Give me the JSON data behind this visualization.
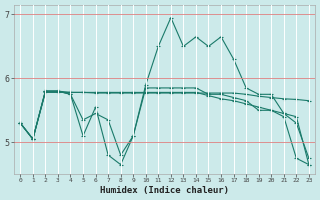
{
  "x": [
    0,
    1,
    2,
    3,
    4,
    5,
    6,
    7,
    8,
    9,
    10,
    11,
    12,
    13,
    14,
    15,
    16,
    17,
    18,
    19,
    20,
    21,
    22,
    23
  ],
  "line1": [
    5.3,
    5.05,
    5.8,
    5.8,
    5.75,
    5.1,
    5.55,
    4.8,
    4.65,
    5.1,
    5.9,
    6.5,
    6.95,
    6.5,
    6.65,
    6.5,
    6.65,
    6.3,
    5.85,
    5.75,
    5.75,
    5.45,
    5.3,
    4.75
  ],
  "line2": [
    5.3,
    5.05,
    5.8,
    5.8,
    5.78,
    5.78,
    5.77,
    5.77,
    5.77,
    5.77,
    5.77,
    5.77,
    5.77,
    5.77,
    5.77,
    5.77,
    5.77,
    5.77,
    5.75,
    5.72,
    5.7,
    5.68,
    5.67,
    5.65
  ],
  "line3": [
    5.3,
    5.05,
    5.8,
    5.8,
    5.75,
    5.35,
    5.45,
    5.35,
    4.8,
    5.1,
    5.85,
    5.85,
    5.85,
    5.85,
    5.85,
    5.75,
    5.75,
    5.7,
    5.65,
    5.5,
    5.5,
    5.4,
    4.75,
    4.65
  ],
  "line4": [
    5.3,
    5.05,
    5.78,
    5.78,
    5.78,
    5.78,
    5.78,
    5.78,
    5.78,
    5.78,
    5.78,
    5.78,
    5.78,
    5.78,
    5.78,
    5.73,
    5.68,
    5.65,
    5.6,
    5.55,
    5.5,
    5.45,
    5.4,
    4.65
  ],
  "color": "#1a7a6a",
  "bg_color": "#cceaea",
  "xlabel": "Humidex (Indice chaleur)",
  "ylim": [
    4.5,
    7.15
  ],
  "xlim": [
    -0.5,
    23.5
  ],
  "yticks": [
    5,
    6,
    7
  ],
  "xticks": [
    0,
    1,
    2,
    3,
    4,
    5,
    6,
    7,
    8,
    9,
    10,
    11,
    12,
    13,
    14,
    15,
    16,
    17,
    18,
    19,
    20,
    21,
    22,
    23
  ]
}
